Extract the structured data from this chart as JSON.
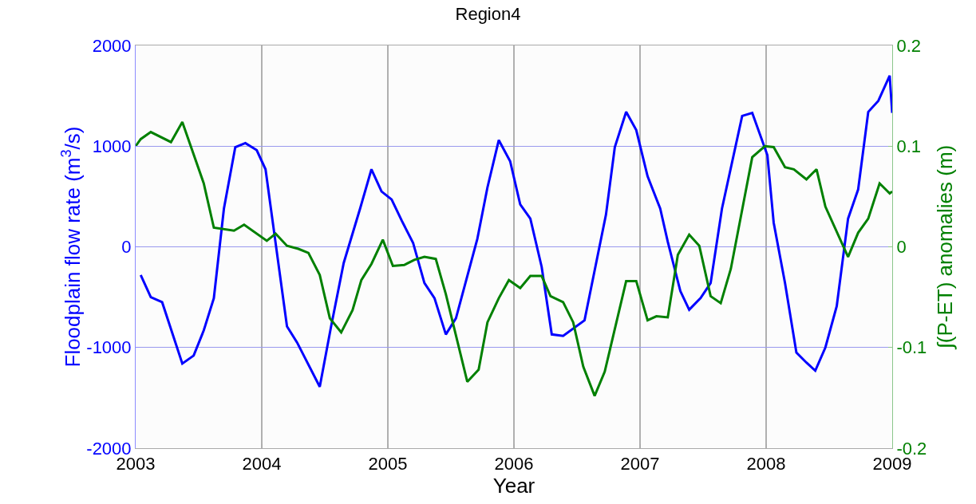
{
  "chart_data": {
    "type": "line",
    "title": "Region4",
    "xlabel": "Year",
    "ylabel": "Floodplain flow rate (m$^{3}$/s)",
    "y2label": "∫(P-ET) anomalies (m)",
    "xlim": [
      2003,
      2009
    ],
    "xticks": [
      2003,
      2004,
      2005,
      2006,
      2007,
      2008,
      2009
    ],
    "ylim": [
      -2000,
      2000
    ],
    "yticks": [
      -2000,
      -1000,
      0,
      1000,
      2000
    ],
    "y2lim": [
      -0.2,
      0.2
    ],
    "y2ticks": [
      -0.2,
      -0.1,
      0,
      0.1,
      0.2
    ],
    "grid": true,
    "line_style": "solid",
    "marker": "none",
    "series": [
      {
        "color": "#0000ff",
        "x": [
          2003.04,
          2003.12,
          2003.21,
          2003.37,
          2003.46,
          2003.54,
          2003.62,
          2003.7,
          2003.79,
          2003.87,
          2003.96,
          2004.03,
          2004.2,
          2004.28,
          2004.46,
          2004.55,
          2004.65,
          2004.78,
          2004.87,
          2004.95,
          2005.03,
          2005.11,
          2005.2,
          2005.29,
          2005.37,
          2005.46,
          2005.54,
          2005.71,
          2005.79,
          2005.88,
          2005.97,
          2006.05,
          2006.13,
          2006.22,
          2006.3,
          2006.39,
          2006.56,
          2006.73,
          2006.8,
          2006.89,
          2006.97,
          2007.06,
          2007.16,
          2007.22,
          2007.32,
          2007.39,
          2007.48,
          2007.56,
          2007.65,
          2007.81,
          2007.89,
          2008.01,
          2008.06,
          2008.15,
          2008.24,
          2008.32,
          2008.39,
          2008.47,
          2008.56,
          2008.65,
          2008.73,
          2008.81,
          2008.89,
          2008.98,
          2009.0
        ],
        "values": [
          -280,
          -500,
          -550,
          -1160,
          -1080,
          -830,
          -510,
          380,
          990,
          1030,
          960,
          770,
          -790,
          -950,
          -1390,
          -790,
          -160,
          380,
          770,
          550,
          470,
          260,
          40,
          -360,
          -510,
          -870,
          -710,
          80,
          590,
          1060,
          850,
          420,
          280,
          -200,
          -870,
          -885,
          -730,
          320,
          990,
          1340,
          1160,
          700,
          380,
          50,
          -440,
          -625,
          -510,
          -360,
          380,
          1300,
          1330,
          910,
          240,
          -360,
          -1050,
          -1150,
          -1230,
          -1000,
          -590,
          280,
          570,
          1340,
          1450,
          1700,
          1330
        ]
      },
      {
        "color": "#008000",
        "axis": "y2",
        "x": [
          2003.0,
          2003.04,
          2003.12,
          2003.28,
          2003.37,
          2003.54,
          2003.62,
          2003.78,
          2003.86,
          2004.04,
          2004.11,
          2004.2,
          2004.29,
          2004.37,
          2004.46,
          2004.54,
          2004.63,
          2004.72,
          2004.79,
          2004.87,
          2004.96,
          2005.04,
          2005.13,
          2005.21,
          2005.29,
          2005.38,
          2005.46,
          2005.63,
          2005.72,
          2005.79,
          2005.88,
          2005.96,
          2006.05,
          2006.13,
          2006.22,
          2006.29,
          2006.39,
          2006.47,
          2006.55,
          2006.64,
          2006.72,
          2006.89,
          2006.97,
          2007.06,
          2007.13,
          2007.22,
          2007.3,
          2007.39,
          2007.47,
          2007.56,
          2007.64,
          2007.72,
          2007.89,
          2007.99,
          2008.06,
          2008.15,
          2008.22,
          2008.32,
          2008.4,
          2008.47,
          2008.65,
          2008.73,
          2008.81,
          2008.9,
          2008.98,
          2009.0
        ],
        "values": [
          0.1,
          0.107,
          0.114,
          0.104,
          0.124,
          0.063,
          0.019,
          0.016,
          0.022,
          0.006,
          0.013,
          0.001,
          -0.002,
          -0.006,
          -0.028,
          -0.071,
          -0.085,
          -0.063,
          -0.033,
          -0.017,
          0.007,
          -0.019,
          -0.018,
          -0.013,
          -0.01,
          -0.012,
          -0.047,
          -0.134,
          -0.122,
          -0.075,
          -0.051,
          -0.033,
          -0.041,
          -0.029,
          -0.029,
          -0.049,
          -0.055,
          -0.075,
          -0.119,
          -0.148,
          -0.124,
          -0.034,
          -0.034,
          -0.073,
          -0.069,
          -0.07,
          -0.008,
          0.012,
          0.001,
          -0.049,
          -0.056,
          -0.022,
          0.089,
          0.1,
          0.099,
          0.079,
          0.077,
          0.067,
          0.077,
          0.04,
          -0.01,
          0.014,
          0.028,
          0.063,
          0.053,
          0.055
        ]
      }
    ]
  }
}
